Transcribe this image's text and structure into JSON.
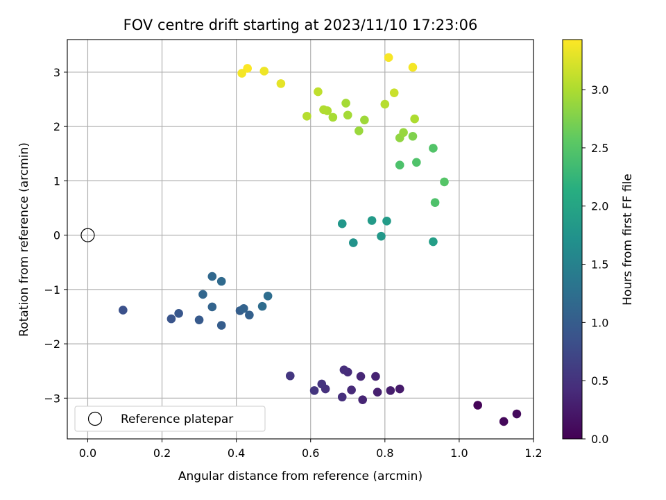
{
  "chart_data": {
    "type": "scatter",
    "title": "FOV centre drift starting at 2023/11/10 17:23:06",
    "xlabel": "Angular distance from reference (arcmin)",
    "ylabel": "Rotation from reference (arcmin)",
    "xlim": [
      -0.055,
      1.2
    ],
    "ylim": [
      -3.75,
      3.6
    ],
    "xticks": [
      "0.0",
      "0.2",
      "0.4",
      "0.6",
      "0.8",
      "1.0",
      "1.2"
    ],
    "xtick_values": [
      0.0,
      0.2,
      0.4,
      0.6,
      0.8,
      1.0,
      1.2
    ],
    "yticks": [
      "−3",
      "−2",
      "−1",
      "0",
      "1",
      "2",
      "3"
    ],
    "ytick_values": [
      -3,
      -2,
      -1,
      0,
      1,
      2,
      3
    ],
    "grid": true,
    "colormap": "viridis",
    "colorbar": {
      "label": "Hours from first FF file",
      "range": [
        0.0,
        3.43
      ],
      "ticks": [
        "0.0",
        "0.5",
        "1.0",
        "1.5",
        "2.0",
        "2.5",
        "3.0"
      ],
      "tick_values": [
        0.0,
        0.5,
        1.0,
        1.5,
        2.0,
        2.5,
        3.0
      ]
    },
    "legend": {
      "placement": "lower-left",
      "entries": [
        "Reference platepar"
      ]
    },
    "reference_point": {
      "x": 0.0,
      "y": 0.0
    },
    "points": [
      {
        "x": 1.05,
        "y": -3.13,
        "c": 0.03
      },
      {
        "x": 1.12,
        "y": -3.43,
        "c": 0.07
      },
      {
        "x": 1.155,
        "y": -3.29,
        "c": 0.1
      },
      {
        "x": 0.84,
        "y": -2.83,
        "c": 0.25
      },
      {
        "x": 0.815,
        "y": -2.86,
        "c": 0.28
      },
      {
        "x": 0.78,
        "y": -2.89,
        "c": 0.3
      },
      {
        "x": 0.775,
        "y": -2.6,
        "c": 0.33
      },
      {
        "x": 0.74,
        "y": -3.03,
        "c": 0.35
      },
      {
        "x": 0.735,
        "y": -2.6,
        "c": 0.37
      },
      {
        "x": 0.71,
        "y": -2.85,
        "c": 0.4
      },
      {
        "x": 0.7,
        "y": -2.52,
        "c": 0.42
      },
      {
        "x": 0.69,
        "y": -2.48,
        "c": 0.44
      },
      {
        "x": 0.685,
        "y": -2.98,
        "c": 0.46
      },
      {
        "x": 0.64,
        "y": -2.83,
        "c": 0.48
      },
      {
        "x": 0.63,
        "y": -2.74,
        "c": 0.5
      },
      {
        "x": 0.61,
        "y": -2.86,
        "c": 0.52
      },
      {
        "x": 0.545,
        "y": -2.59,
        "c": 0.55
      },
      {
        "x": 0.095,
        "y": -1.38,
        "c": 0.85
      },
      {
        "x": 0.225,
        "y": -1.54,
        "c": 0.9
      },
      {
        "x": 0.245,
        "y": -1.44,
        "c": 0.93
      },
      {
        "x": 0.3,
        "y": -1.56,
        "c": 0.97
      },
      {
        "x": 0.36,
        "y": -1.66,
        "c": 1.0
      },
      {
        "x": 0.41,
        "y": -1.39,
        "c": 1.02
      },
      {
        "x": 0.435,
        "y": -1.47,
        "c": 1.05
      },
      {
        "x": 0.42,
        "y": -1.35,
        "c": 1.08
      },
      {
        "x": 0.335,
        "y": -1.32,
        "c": 1.1
      },
      {
        "x": 0.31,
        "y": -1.09,
        "c": 1.12
      },
      {
        "x": 0.335,
        "y": -0.76,
        "c": 1.15
      },
      {
        "x": 0.36,
        "y": -0.85,
        "c": 1.18
      },
      {
        "x": 0.47,
        "y": -1.31,
        "c": 1.2
      },
      {
        "x": 0.485,
        "y": -1.12,
        "c": 1.22
      },
      {
        "x": 0.685,
        "y": 0.21,
        "c": 1.8
      },
      {
        "x": 0.715,
        "y": -0.14,
        "c": 1.75
      },
      {
        "x": 0.765,
        "y": 0.27,
        "c": 1.85
      },
      {
        "x": 0.79,
        "y": -0.02,
        "c": 1.82
      },
      {
        "x": 0.805,
        "y": 0.26,
        "c": 1.87
      },
      {
        "x": 0.93,
        "y": -0.12,
        "c": 1.9
      },
      {
        "x": 0.935,
        "y": 0.6,
        "c": 2.45
      },
      {
        "x": 0.96,
        "y": 0.98,
        "c": 2.5
      },
      {
        "x": 0.93,
        "y": 1.6,
        "c": 2.48
      },
      {
        "x": 0.885,
        "y": 1.34,
        "c": 2.46
      },
      {
        "x": 0.84,
        "y": 1.29,
        "c": 2.44
      },
      {
        "x": 0.84,
        "y": 1.79,
        "c": 2.85
      },
      {
        "x": 0.85,
        "y": 1.89,
        "c": 2.88
      },
      {
        "x": 0.875,
        "y": 1.82,
        "c": 2.75
      },
      {
        "x": 0.88,
        "y": 2.14,
        "c": 3.0
      },
      {
        "x": 0.73,
        "y": 1.92,
        "c": 2.9
      },
      {
        "x": 0.745,
        "y": 2.12,
        "c": 2.92
      },
      {
        "x": 0.7,
        "y": 2.21,
        "c": 2.95
      },
      {
        "x": 0.695,
        "y": 2.43,
        "c": 2.95
      },
      {
        "x": 0.66,
        "y": 2.17,
        "c": 2.97
      },
      {
        "x": 0.645,
        "y": 2.29,
        "c": 3.0
      },
      {
        "x": 0.635,
        "y": 2.31,
        "c": 3.02
      },
      {
        "x": 0.62,
        "y": 2.64,
        "c": 3.1
      },
      {
        "x": 0.59,
        "y": 2.19,
        "c": 3.05
      },
      {
        "x": 0.8,
        "y": 2.41,
        "c": 3.05
      },
      {
        "x": 0.825,
        "y": 2.62,
        "c": 3.15
      },
      {
        "x": 0.81,
        "y": 3.27,
        "c": 3.4
      },
      {
        "x": 0.875,
        "y": 3.09,
        "c": 3.38
      },
      {
        "x": 0.52,
        "y": 2.79,
        "c": 3.3
      },
      {
        "x": 0.475,
        "y": 3.02,
        "c": 3.35
      },
      {
        "x": 0.43,
        "y": 3.07,
        "c": 3.42
      },
      {
        "x": 0.415,
        "y": 2.98,
        "c": 3.38
      }
    ]
  }
}
